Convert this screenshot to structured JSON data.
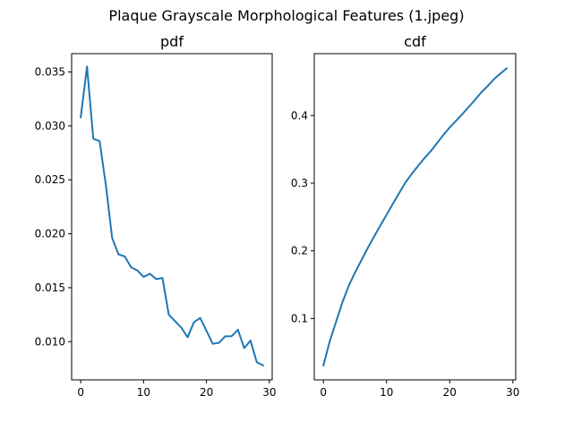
{
  "figure": {
    "suptitle": "Plaque Grayscale Morphological Features (1.jpeg)"
  },
  "chart_data": [
    {
      "type": "line",
      "title": "pdf",
      "xlabel": "",
      "ylabel": "",
      "x": [
        0,
        1,
        2,
        3,
        4,
        5,
        6,
        7,
        8,
        9,
        10,
        11,
        12,
        13,
        14,
        15,
        16,
        17,
        18,
        19,
        20,
        21,
        22,
        23,
        24,
        25,
        26,
        27,
        28,
        29
      ],
      "values": [
        0.0308,
        0.0355,
        0.0288,
        0.0286,
        0.0245,
        0.0196,
        0.0181,
        0.0179,
        0.0169,
        0.0166,
        0.016,
        0.0163,
        0.0158,
        0.0159,
        0.0125,
        0.0119,
        0.0113,
        0.0104,
        0.0118,
        0.0122,
        0.011,
        0.0098,
        0.0099,
        0.0105,
        0.0105,
        0.0111,
        0.0094,
        0.0101,
        0.0081,
        0.0078
      ],
      "xlim": [
        -1.45,
        30.45
      ],
      "ylim": [
        0.00646,
        0.0367
      ],
      "xticks": [
        0,
        10,
        20,
        30
      ],
      "xtick_labels": [
        "0",
        "10",
        "20",
        "30"
      ],
      "yticks": [
        0.01,
        0.015,
        0.02,
        0.025,
        0.03,
        0.035
      ],
      "ytick_labels": [
        "0.010",
        "0.015",
        "0.020",
        "0.025",
        "0.030",
        "0.035"
      ],
      "grid": false,
      "color": "#1f77b4"
    },
    {
      "type": "line",
      "title": "cdf",
      "xlabel": "",
      "ylabel": "",
      "x": [
        0,
        1,
        2,
        3,
        4,
        5,
        6,
        7,
        8,
        9,
        10,
        11,
        12,
        13,
        14,
        15,
        16,
        17,
        18,
        19,
        20,
        21,
        22,
        23,
        24,
        25,
        26,
        27,
        28,
        29
      ],
      "values": [
        0.0308,
        0.0663,
        0.0951,
        0.1237,
        0.1482,
        0.1678,
        0.1859,
        0.2038,
        0.2207,
        0.2373,
        0.2533,
        0.2696,
        0.2854,
        0.3013,
        0.3138,
        0.3257,
        0.337,
        0.3474,
        0.3592,
        0.3714,
        0.3824,
        0.3922,
        0.4021,
        0.4126,
        0.4231,
        0.4342,
        0.4436,
        0.4537,
        0.4618,
        0.4696
      ],
      "xlim": [
        -1.45,
        30.45
      ],
      "ylim": [
        0.0094,
        0.4915
      ],
      "xticks": [
        0,
        10,
        20,
        30
      ],
      "xtick_labels": [
        "0",
        "10",
        "20",
        "30"
      ],
      "yticks": [
        0.1,
        0.2,
        0.3,
        0.4
      ],
      "ytick_labels": [
        "0.1",
        "0.2",
        "0.3",
        "0.4"
      ],
      "grid": false,
      "color": "#1f77b4"
    }
  ]
}
